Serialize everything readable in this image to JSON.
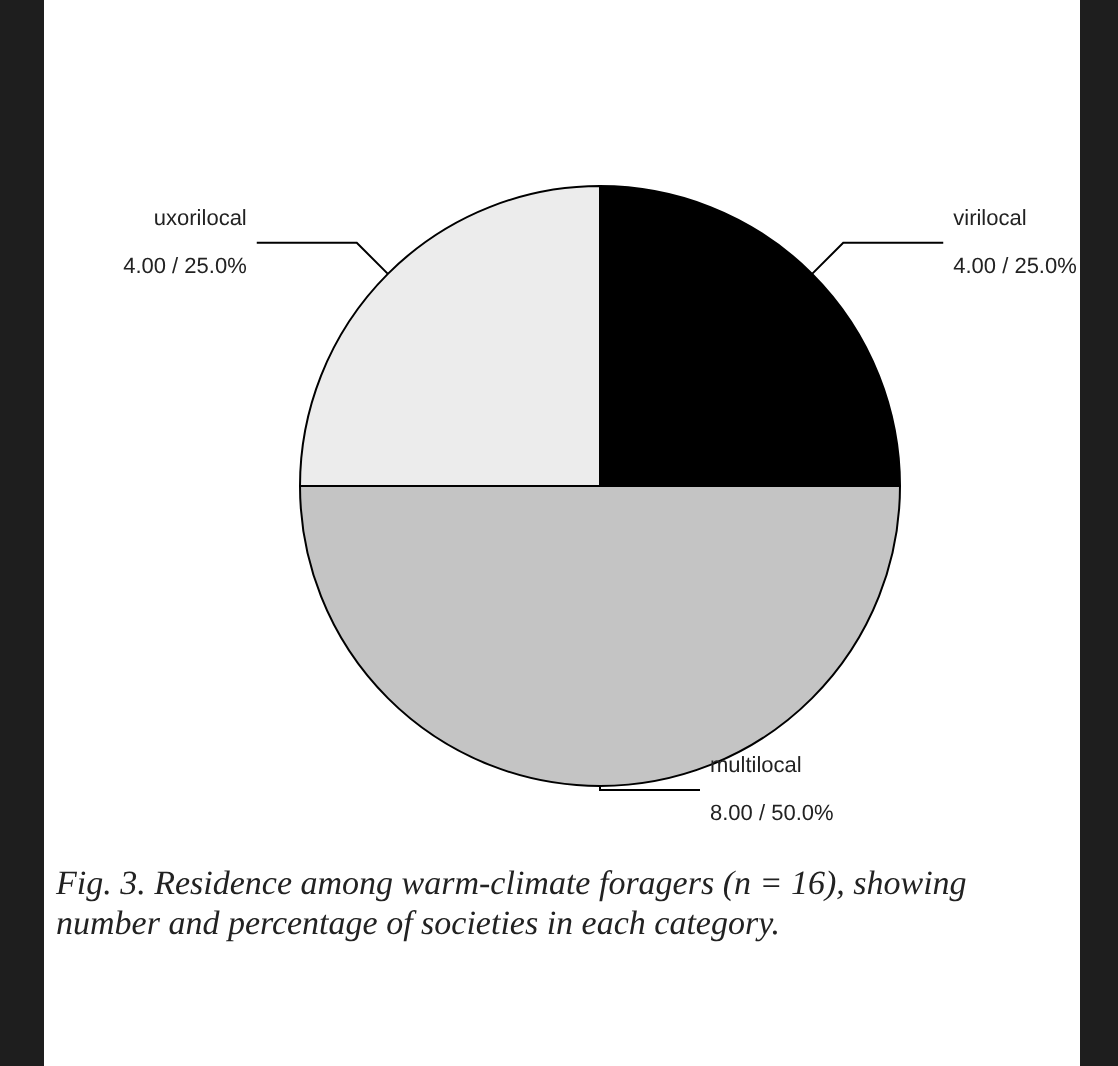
{
  "chart_data": {
    "type": "pie",
    "categories": [
      "uxorilocal",
      "multilocal",
      "virilocal"
    ],
    "values": [
      4,
      8,
      4
    ],
    "colors": [
      "#ececec",
      "#c4c4c4",
      "#000000"
    ],
    "value_labels": [
      "4.00 / 25.0%",
      "8.00 / 50.0%",
      "4.00 / 25.0%"
    ],
    "legend": false,
    "annotations": [
      "Fig. 3. Residence among warm-climate foragers (n = 16), showing number and percentage of societies in each category."
    ]
  }
}
